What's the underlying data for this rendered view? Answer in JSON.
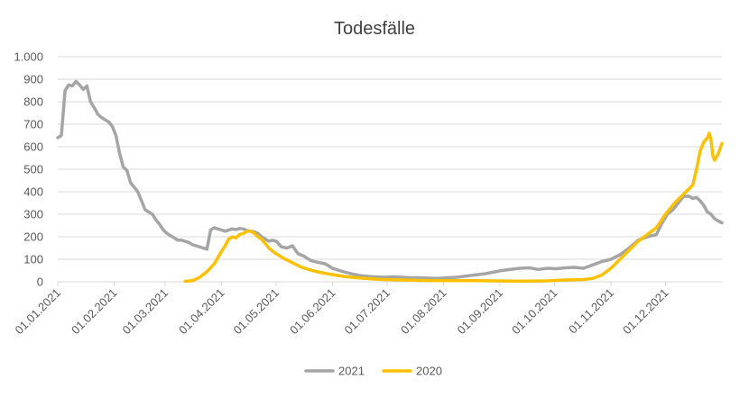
{
  "chart_data": {
    "type": "line",
    "title": "Todesfälle",
    "xlabel": "",
    "ylabel": "",
    "ylim": [
      0,
      1000
    ],
    "yticks": [
      0,
      100,
      200,
      300,
      400,
      500,
      600,
      700,
      800,
      900,
      1000
    ],
    "ytick_labels": [
      "0",
      "100",
      "200",
      "300",
      "400",
      "500",
      "600",
      "700",
      "800",
      "900",
      "1.000"
    ],
    "xrange": [
      1,
      366
    ],
    "xticks": [
      1,
      32,
      60,
      91,
      121,
      152,
      182,
      213,
      244,
      274,
      305,
      335
    ],
    "xtick_labels": [
      "01.01.2021",
      "01.02.2021",
      "01.03.2021",
      "01.04.2021",
      "01.05.2021",
      "01.06.2021",
      "01.07.2021",
      "01.08.2021",
      "01.09.2021",
      "01.10.2021",
      "01.11.2021",
      "01.12.2021"
    ],
    "grid": "horizontal",
    "legend_position": "bottom",
    "series": [
      {
        "name": "2021",
        "color": "#A5A5A5",
        "x": [
          1,
          3,
          5,
          7,
          9,
          11,
          13,
          15,
          17,
          19,
          21,
          23,
          25,
          27,
          29,
          31,
          33,
          35,
          37,
          39,
          41,
          43,
          45,
          47,
          49,
          51,
          53,
          55,
          57,
          59,
          61,
          63,
          65,
          67,
          69,
          71,
          73,
          75,
          77,
          79,
          81,
          83,
          85,
          87,
          89,
          91,
          93,
          95,
          97,
          99,
          101,
          103,
          105,
          107,
          109,
          111,
          113,
          115,
          117,
          119,
          121,
          124,
          127,
          130,
          133,
          136,
          138,
          140,
          142,
          145,
          148,
          150,
          152,
          155,
          158,
          161,
          164,
          167,
          170,
          175,
          180,
          185,
          190,
          195,
          200,
          205,
          210,
          215,
          220,
          225,
          230,
          235,
          240,
          245,
          250,
          255,
          260,
          265,
          270,
          275,
          280,
          285,
          290,
          295,
          300,
          305,
          310,
          315,
          320,
          325,
          330,
          333,
          336,
          339,
          342,
          345,
          348,
          350,
          352,
          354,
          356,
          358,
          360,
          362,
          364,
          366
        ],
        "y": [
          640,
          650,
          850,
          875,
          870,
          890,
          875,
          855,
          870,
          800,
          775,
          745,
          730,
          720,
          710,
          690,
          650,
          570,
          510,
          495,
          440,
          420,
          400,
          360,
          320,
          310,
          300,
          275,
          255,
          230,
          215,
          205,
          195,
          185,
          185,
          180,
          175,
          165,
          160,
          155,
          150,
          145,
          230,
          240,
          235,
          230,
          225,
          230,
          235,
          232,
          237,
          235,
          228,
          225,
          222,
          215,
          200,
          190,
          180,
          185,
          180,
          155,
          150,
          160,
          125,
          115,
          105,
          95,
          90,
          85,
          80,
          70,
          60,
          52,
          45,
          38,
          33,
          28,
          25,
          22,
          20,
          22,
          20,
          18,
          18,
          16,
          15,
          18,
          20,
          25,
          30,
          35,
          42,
          50,
          55,
          60,
          62,
          55,
          60,
          58,
          62,
          64,
          60,
          75,
          90,
          100,
          120,
          150,
          185,
          200,
          210,
          260,
          300,
          320,
          350,
          380,
          380,
          370,
          375,
          360,
          340,
          310,
          300,
          280,
          270,
          262
        ]
      },
      {
        "name": "2020",
        "color": "#FFC000",
        "x": [
          71,
          75,
          79,
          83,
          87,
          91,
          93,
          95,
          97,
          99,
          101,
          103,
          105,
          107,
          109,
          111,
          113,
          115,
          117,
          120,
          125,
          130,
          135,
          140,
          145,
          150,
          155,
          160,
          165,
          170,
          175,
          180,
          190,
          200,
          210,
          220,
          230,
          240,
          250,
          260,
          270,
          280,
          290,
          295,
          300,
          305,
          310,
          315,
          320,
          325,
          330,
          335,
          340,
          345,
          350,
          352,
          354,
          356,
          358,
          359,
          360,
          361,
          362,
          364,
          366
        ],
        "y": [
          2,
          5,
          20,
          45,
          80,
          135,
          160,
          190,
          200,
          195,
          210,
          215,
          225,
          225,
          215,
          200,
          190,
          170,
          150,
          130,
          105,
          85,
          65,
          52,
          42,
          35,
          28,
          22,
          18,
          15,
          12,
          10,
          8,
          6,
          5,
          5,
          5,
          4,
          3,
          3,
          4,
          8,
          10,
          15,
          30,
          60,
          100,
          140,
          180,
          210,
          240,
          300,
          350,
          390,
          430,
          500,
          580,
          620,
          640,
          660,
          630,
          560,
          540,
          570,
          615
        ]
      }
    ]
  }
}
